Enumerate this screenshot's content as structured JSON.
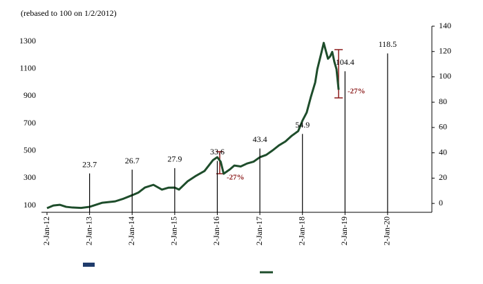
{
  "chart_data": {
    "type": "line",
    "subtitle": "(rebased to 100 on 1/2/2012)",
    "xlim": [
      2011.87,
      2021.04
    ],
    "xticks": [
      {
        "value": 2012,
        "label": "2-Jan-12"
      },
      {
        "value": 2013,
        "label": "2-Jan-13"
      },
      {
        "value": 2014,
        "label": "2-Jan-14"
      },
      {
        "value": 2015,
        "label": "2-Jan-15"
      },
      {
        "value": 2016,
        "label": "2-Jan-16"
      },
      {
        "value": 2017,
        "label": "2-Jan-17"
      },
      {
        "value": 2018,
        "label": "2-Jan-18"
      },
      {
        "value": 2019,
        "label": "2-Jan-19"
      },
      {
        "value": 2020,
        "label": "2-Jan-20"
      }
    ],
    "ylim": [
      50,
      1411
    ],
    "yticks": [
      100,
      300,
      500,
      700,
      900,
      1100,
      1300
    ],
    "y2lim": [
      -7,
      140
    ],
    "y2ticks": [
      0,
      20,
      40,
      60,
      80,
      100,
      120,
      140
    ],
    "series": [
      {
        "color": "#1e4d2b",
        "x": [
          2012.0,
          2012.15,
          2012.3,
          2012.45,
          2012.6,
          2012.8,
          2013.0,
          2013.15,
          2013.3,
          2013.45,
          2013.6,
          2013.8,
          2014.0,
          2014.15,
          2014.3,
          2014.5,
          2014.7,
          2014.85,
          2015.0,
          2015.1,
          2015.3,
          2015.5,
          2015.7,
          2015.9,
          2016.0,
          2016.08,
          2016.15,
          2016.3,
          2016.4,
          2016.55,
          2016.7,
          2016.85,
          2017.0,
          2017.15,
          2017.3,
          2017.45,
          2017.6,
          2017.75,
          2017.9,
          2018.0,
          2018.1,
          2018.2,
          2018.3,
          2018.35,
          2018.45,
          2018.5,
          2018.55,
          2018.6,
          2018.65,
          2018.7,
          2018.75,
          2018.8,
          2018.85
        ],
        "values": [
          80,
          100,
          105,
          90,
          85,
          82,
          90,
          105,
          120,
          125,
          130,
          150,
          175,
          195,
          231,
          251,
          216,
          230,
          231,
          216,
          276,
          317,
          352,
          432,
          453,
          420,
          332,
          365,
          392,
          385,
          407,
          420,
          453,
          470,
          503,
          540,
          568,
          610,
          644,
          720,
          780,
          896,
          1000,
          1097,
          1223,
          1289,
          1230,
          1173,
          1190,
          1223,
          1150,
          1097,
          946
        ]
      },
      {
        "color": "#000000",
        "axis": "y2",
        "x": [
          2013,
          2014,
          2015,
          2016,
          2017,
          2018,
          2019,
          2020
        ],
        "values": [
          23.7,
          26.7,
          27.9,
          33.6,
          43.4,
          54.9,
          104.4,
          118.5
        ]
      }
    ],
    "annotations": [
      "-27%",
      "-27%"
    ]
  }
}
